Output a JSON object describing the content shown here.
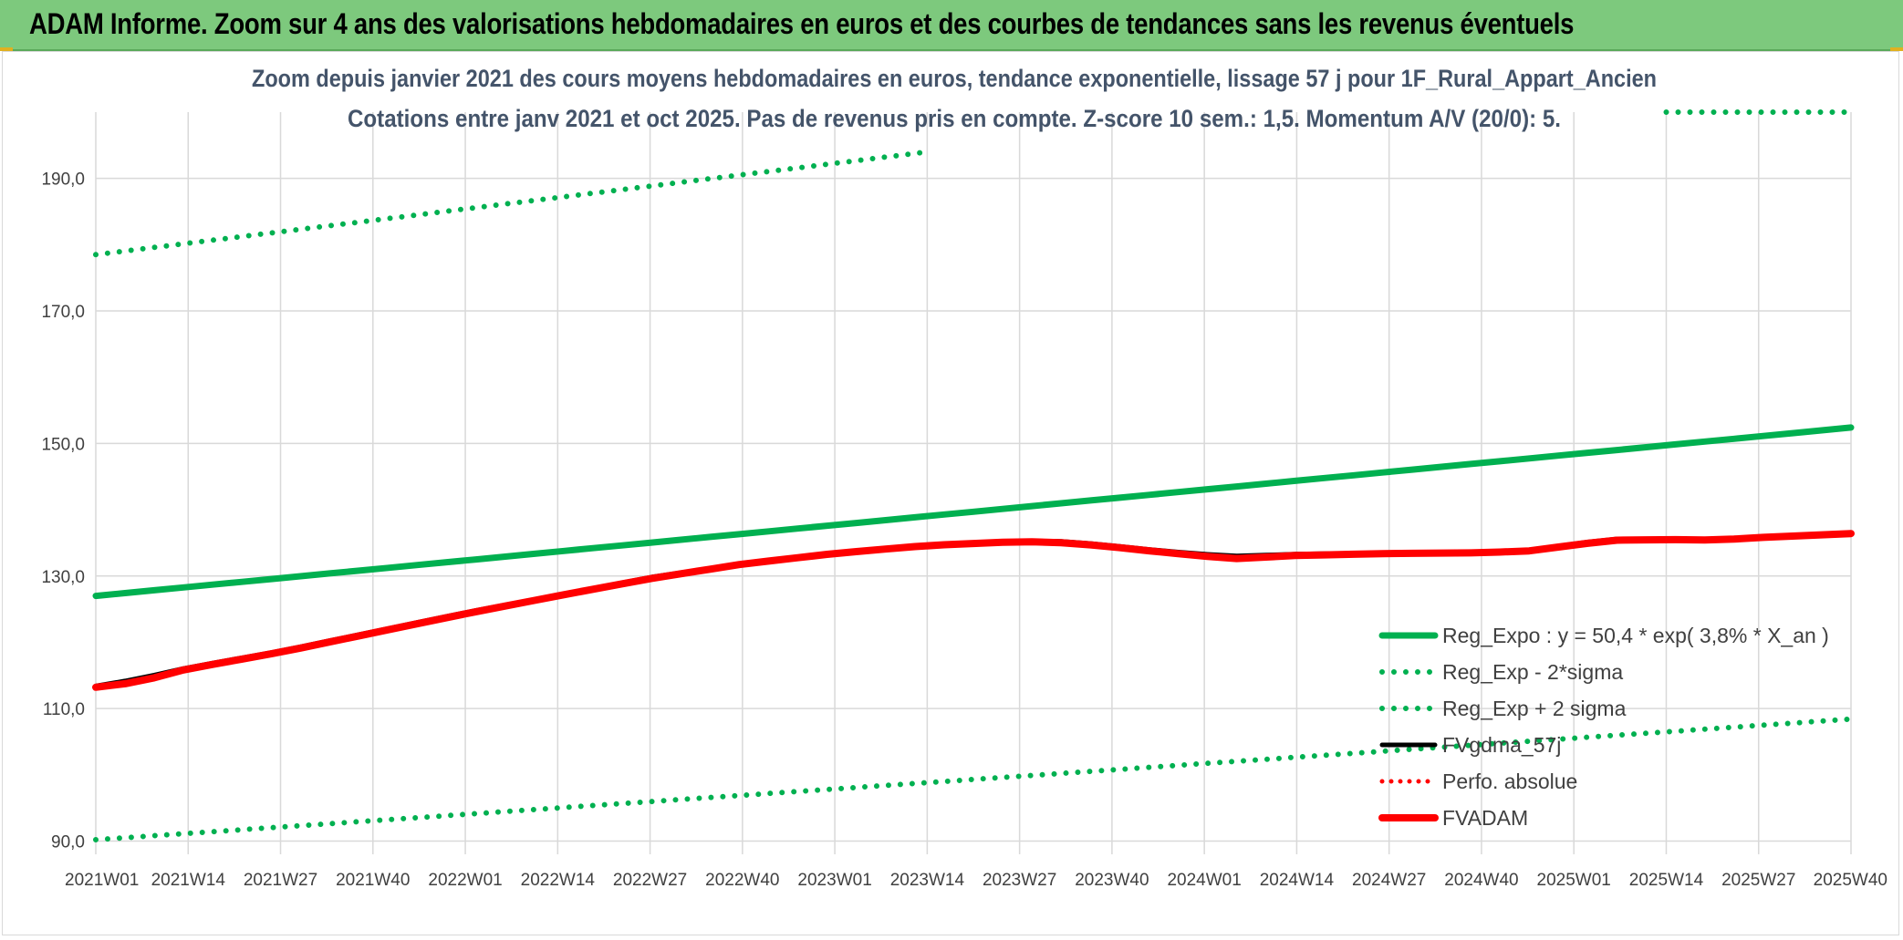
{
  "header": {
    "title": "ADAM Informe. Zoom sur 4 ans des valorisations hebdomadaires en euros et des courbes de tendances sans les revenus éventuels"
  },
  "colors": {
    "header_bg": "#7dc97d",
    "reg_expo": "#00b050",
    "sigma": "#00b050",
    "fvgdma": "#000000",
    "perfo": "#ff0000",
    "fvadam": "#ff0000",
    "grid": "#d9d9d9"
  },
  "chart_data": {
    "type": "line",
    "title": [
      "Zoom depuis janvier 2021 des cours moyens hebdomadaires en euros, tendance exponentielle, lissage 57 j pour 1F_Rural_Appart_Ancien",
      "Cotations entre janv 2021 et oct 2025. Pas de revenus pris en compte. Z-score 10 sem.: 1,5. Momentum A/V (20/0): 5."
    ],
    "xlabel": "",
    "ylabel": "",
    "ylim": [
      88,
      200
    ],
    "yticks": [
      90,
      110,
      130,
      150,
      170,
      190
    ],
    "ytick_labels": [
      "90,0",
      "110,0",
      "130,0",
      "150,0",
      "170,0",
      "190,0"
    ],
    "x_range": [
      0,
      247
    ],
    "categories": [
      "2021W01",
      "2021W14",
      "2021W27",
      "2021W40",
      "2022W01",
      "2022W14",
      "2022W27",
      "2022W40",
      "2023W01",
      "2023W14",
      "2023W27",
      "2023W40",
      "2024W01",
      "2024W14",
      "2024W27",
      "2024W40",
      "2025W01",
      "2025W14",
      "2025W27",
      "2025W40"
    ],
    "category_x": [
      0,
      13,
      26,
      39,
      52,
      65,
      78,
      91,
      104,
      117,
      130,
      143,
      156,
      169,
      182,
      195,
      208,
      221,
      234,
      247
    ],
    "series": [
      {
        "name": "Reg_Expo : y = 50,4 * exp( 3,8% *  X_an )",
        "style": "solid-thick",
        "x": [
          0,
          247
        ],
        "y": [
          127.0,
          152.4
        ]
      },
      {
        "name": "Reg_Exp - 2*sigma",
        "style": "dotted",
        "x": [
          0,
          247
        ],
        "y": [
          90.2,
          108.4
        ]
      },
      {
        "name": "Reg_Exp + 2 sigma",
        "style": "dotted",
        "x": [
          0,
          117,
          221,
          247
        ],
        "y": [
          178.5,
          194.0,
          200.0,
          200.0
        ],
        "visible_segments": [
          [
            0,
            117
          ],
          [
            221,
            247
          ]
        ]
      },
      {
        "name": "FVgdma_57j",
        "style": "solid-black",
        "x": [
          0,
          6,
          13,
          26,
          39,
          52,
          65,
          78,
          91,
          104,
          117,
          130,
          137,
          143,
          150,
          156,
          160,
          169,
          182,
          195,
          202,
          208,
          214,
          221,
          228,
          234,
          247
        ],
        "y": [
          113.4,
          114.5,
          116.2,
          118.7,
          121.6,
          124.5,
          127.1,
          129.8,
          131.9,
          133.5,
          134.7,
          135.3,
          135.2,
          134.6,
          133.8,
          133.3,
          133.0,
          133.3,
          133.5,
          133.6,
          133.9,
          134.9,
          135.6,
          135.6,
          135.5,
          135.9,
          136.5
        ]
      },
      {
        "name": "Perfo. absolue",
        "style": "dotted-red",
        "x": [],
        "y": []
      },
      {
        "name": "FVADAM",
        "style": "solid-red-thick",
        "x": [
          0,
          6,
          13,
          26,
          39,
          52,
          65,
          78,
          91,
          104,
          117,
          130,
          137,
          143,
          150,
          156,
          160,
          169,
          182,
          195,
          202,
          208,
          214,
          221,
          228,
          234,
          247
        ],
        "y": [
          113.2,
          114.0,
          116.0,
          118.5,
          121.4,
          124.3,
          127.0,
          129.6,
          131.8,
          133.4,
          134.6,
          135.2,
          135.0,
          134.4,
          133.6,
          133.0,
          132.6,
          133.1,
          133.4,
          133.5,
          133.8,
          134.7,
          135.4,
          135.5,
          135.4,
          135.8,
          136.4
        ]
      }
    ],
    "legend_position": "lower-right"
  }
}
